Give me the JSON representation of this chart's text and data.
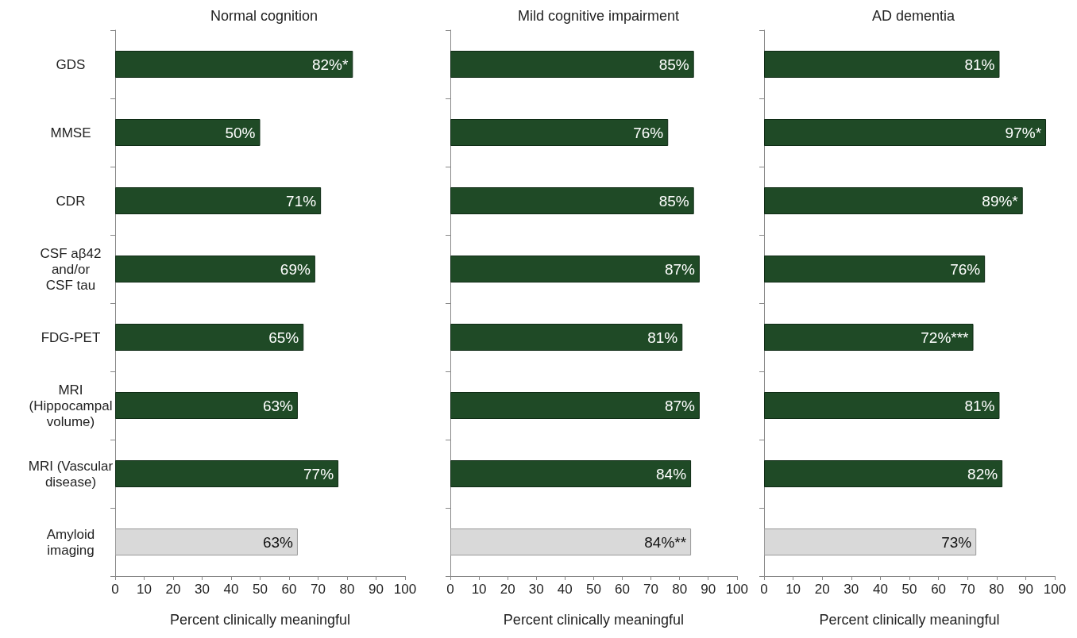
{
  "chart_data": [
    {
      "type": "bar",
      "orientation": "horizontal",
      "title": "Normal cognition",
      "xlabel": "Percent clinically meaningful",
      "categories": [
        "GDS",
        "MMSE",
        "CDR",
        "CSF aβ42\nand/or\nCSF tau",
        "FDG-PET",
        "MRI\n(Hippocampal\nvolume)",
        "MRI (Vascular\ndisease)",
        "Amyloid\nimaging"
      ],
      "values": [
        82,
        50,
        71,
        69,
        65,
        63,
        77,
        63
      ],
      "colors": [
        "#1f4a26",
        "#1f4a26",
        "#1f4a26",
        "#1f4a26",
        "#1f4a26",
        "#1f4a26",
        "#1f4a26",
        "#d9d9d9"
      ],
      "value_labels": [
        "82%*",
        "50%",
        "71%",
        "69%",
        "65%",
        "63%",
        "77%",
        "63%"
      ],
      "xlim": [
        0,
        100
      ],
      "xticks": [
        0,
        10,
        20,
        30,
        40,
        50,
        60,
        70,
        80,
        90,
        100
      ],
      "grid": false
    },
    {
      "type": "bar",
      "orientation": "horizontal",
      "title": "Mild cognitive impairment",
      "xlabel": "Percent clinically meaningful",
      "categories": [
        null,
        null,
        null,
        null,
        null,
        null,
        null,
        null
      ],
      "values": [
        85,
        76,
        85,
        87,
        81,
        87,
        84,
        84
      ],
      "colors": [
        "#1f4a26",
        "#1f4a26",
        "#1f4a26",
        "#1f4a26",
        "#1f4a26",
        "#1f4a26",
        "#1f4a26",
        "#d9d9d9"
      ],
      "value_labels": [
        "85%",
        "76%",
        "85%",
        "87%",
        "81%",
        "87%",
        "84%",
        "84%**"
      ],
      "xlim": [
        0,
        100
      ],
      "xticks": [
        0,
        10,
        20,
        30,
        40,
        50,
        60,
        70,
        80,
        90,
        100
      ],
      "grid": false,
      "tick_labels": "x"
    },
    {
      "type": "bar",
      "orientation": "horizontal",
      "title": "AD dementia",
      "xlabel": "Percent clinically meaningful",
      "categories": [
        null,
        null,
        null,
        null,
        null,
        null,
        null,
        null
      ],
      "values": [
        81,
        97,
        89,
        76,
        72,
        81,
        82,
        73
      ],
      "colors": [
        "#1f4a26",
        "#1f4a26",
        "#1f4a26",
        "#1f4a26",
        "#1f4a26",
        "#1f4a26",
        "#1f4a26",
        "#d9d9d9"
      ],
      "value_labels": [
        "81%",
        "97%*",
        "89%*",
        "76%",
        "72%***",
        "81%",
        "82%",
        "73%"
      ],
      "xlim": [
        0,
        100
      ],
      "xticks": [
        0,
        10,
        20,
        30,
        40,
        50,
        60,
        70,
        80,
        90,
        100
      ],
      "grid": false,
      "tick_labels": "x"
    }
  ]
}
